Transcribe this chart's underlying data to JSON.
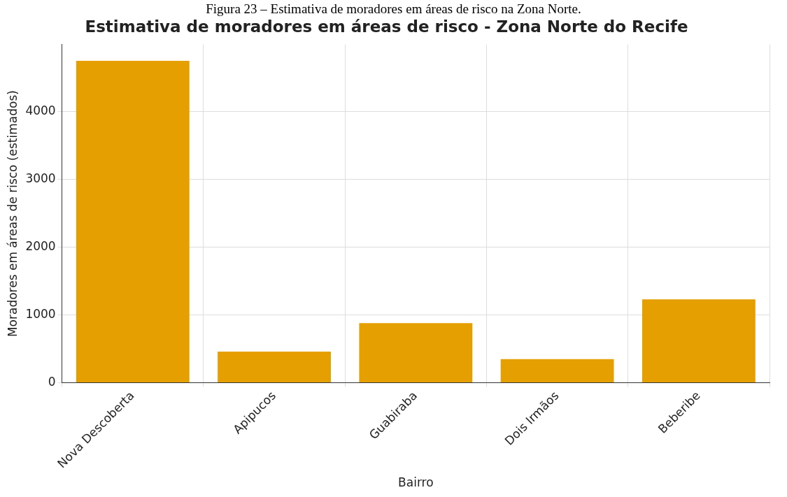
{
  "chart_data": {
    "type": "bar",
    "title": "Estimativa de moradores em áreas de risco - Zona Norte do Recife",
    "annotations": [
      "Figura 23 – Estimativa de moradores em áreas de risco na Zona Norte."
    ],
    "xlabel": "Bairro",
    "ylabel": "Moradores em áreas de risco (estimados)",
    "categories": [
      "Nova Descoberta",
      "Apipucos",
      "Guabiraba",
      "Dois Irmãos",
      "Beberibe"
    ],
    "values": [
      4750,
      460,
      880,
      350,
      1230
    ],
    "color": "#e69f00",
    "ylim": [
      0,
      4990
    ],
    "yticks": [
      0,
      1000,
      2000,
      3000,
      4000
    ],
    "grid": true
  }
}
